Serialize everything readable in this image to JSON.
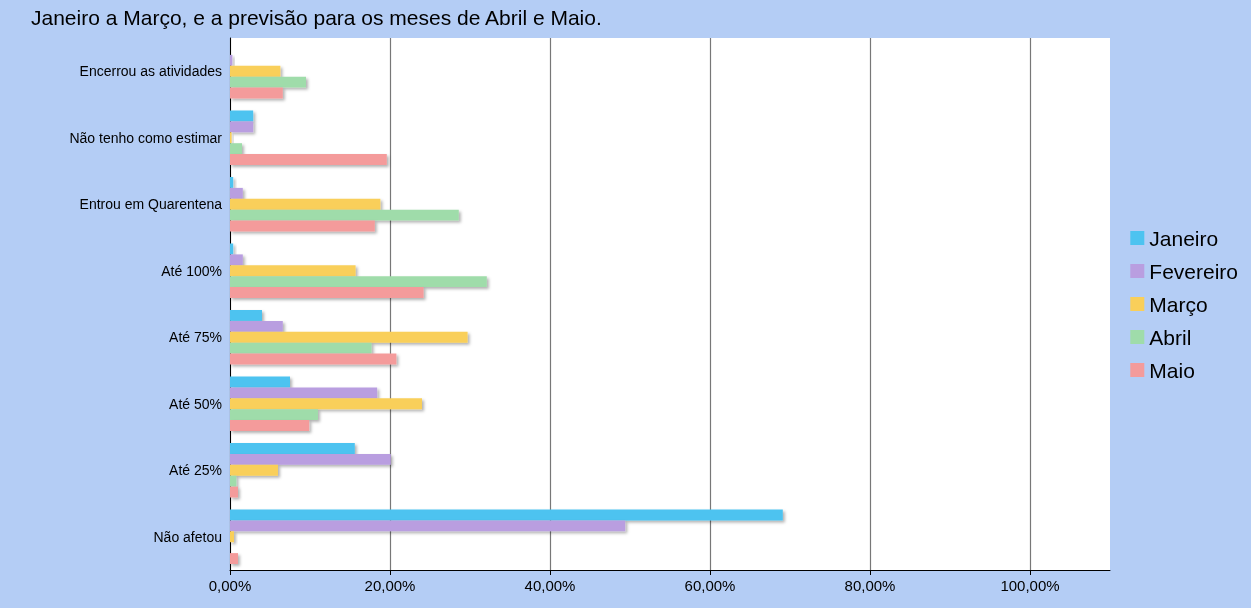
{
  "chart_data": {
    "type": "bar",
    "orientation": "horizontal",
    "title": "Janeiro a Março, e a previsão para os meses de Abril e Maio.",
    "categories": [
      "Encerrou as atividades",
      "Não tenho como estimar",
      "Entrou em Quarentena",
      "Até 100%",
      "Até 75%",
      "Até 50%",
      "Até 25%",
      "Não afetou"
    ],
    "series": [
      {
        "name": "Janeiro",
        "color": "#4dc3f0",
        "values": [
          0,
          2.9,
          0.4,
          0.4,
          4.0,
          7.5,
          15.6,
          69.1
        ]
      },
      {
        "name": "Fevereiro",
        "color": "#b99ee0",
        "values": [
          0.3,
          2.9,
          1.6,
          1.6,
          6.6,
          18.4,
          20.1,
          49.4
        ]
      },
      {
        "name": "Março",
        "color": "#f9cf5a",
        "values": [
          6.3,
          0.2,
          18.8,
          15.7,
          29.7,
          24.0,
          6.0,
          0.5
        ]
      },
      {
        "name": "Abril",
        "color": "#9fdcaa",
        "values": [
          9.5,
          1.5,
          28.6,
          32.1,
          17.7,
          11.0,
          0.8,
          0
        ]
      },
      {
        "name": "Maio",
        "color": "#f49b9b",
        "values": [
          6.6,
          19.6,
          18.1,
          24.2,
          20.8,
          9.9,
          1.0,
          1.0
        ]
      }
    ],
    "xlim": [
      0,
      110
    ],
    "xticks": [
      {
        "value": 0,
        "label": "0,00%"
      },
      {
        "value": 20,
        "label": "20,00%"
      },
      {
        "value": 40,
        "label": "40,00%"
      },
      {
        "value": 60,
        "label": "60,00%"
      },
      {
        "value": 80,
        "label": "80,00%"
      },
      {
        "value": 100,
        "label": "100,00%"
      }
    ],
    "grid": "x",
    "legend": "right"
  }
}
